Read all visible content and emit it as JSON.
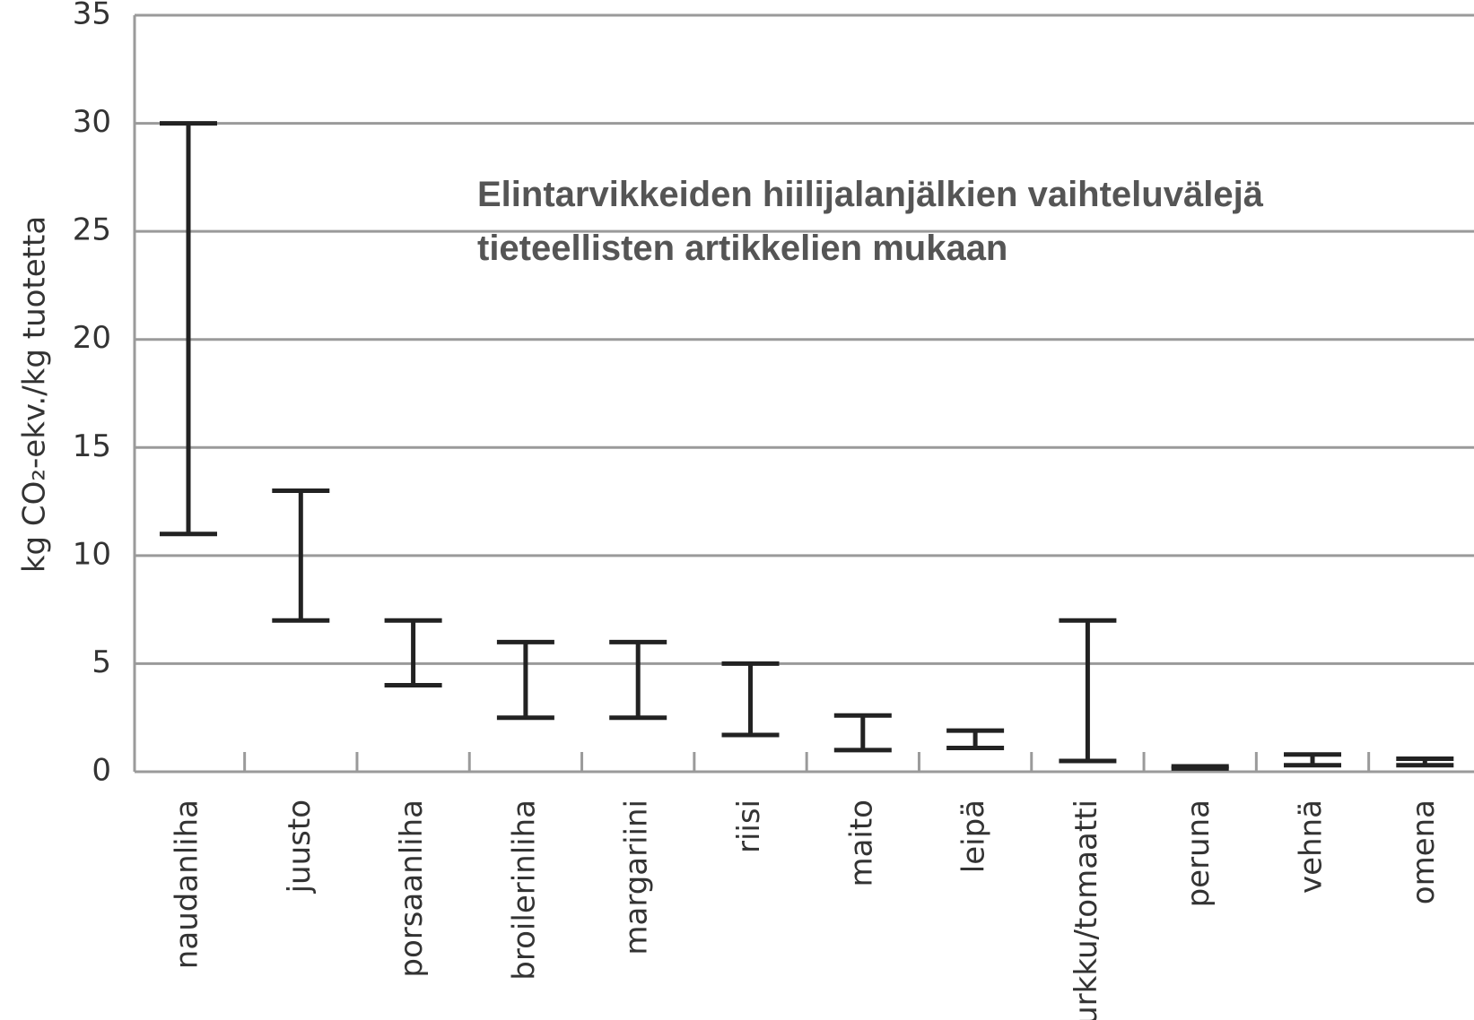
{
  "chart_data": {
    "type": "range",
    "title": [
      "Elintarvikkeiden hiilijalanjälkien vaihteluvälejä",
      "tieteellisten artikkelien mukaan"
    ],
    "y_label": "kg CO₂-ekv./kg tuotetta",
    "categories": [
      "naudanliha",
      "juusto",
      "porsaanliha",
      "broilerinliha",
      "margariini",
      "riisi",
      "maito",
      "leipä",
      "kurkku/tomaatti",
      "peruna",
      "vehnä",
      "omena"
    ],
    "low": [
      11,
      7,
      4,
      2.5,
      2.5,
      1.7,
      1,
      1.1,
      0.5,
      0.15,
      0.3,
      0.3
    ],
    "high": [
      30,
      13,
      7,
      6,
      6,
      5,
      2.6,
      1.9,
      7,
      0.25,
      0.8,
      0.6
    ],
    "color": "#222222",
    "ylim": [
      0,
      35
    ],
    "yticks": [
      0,
      5,
      10,
      15,
      20,
      25,
      30,
      35
    ],
    "grid": true
  }
}
